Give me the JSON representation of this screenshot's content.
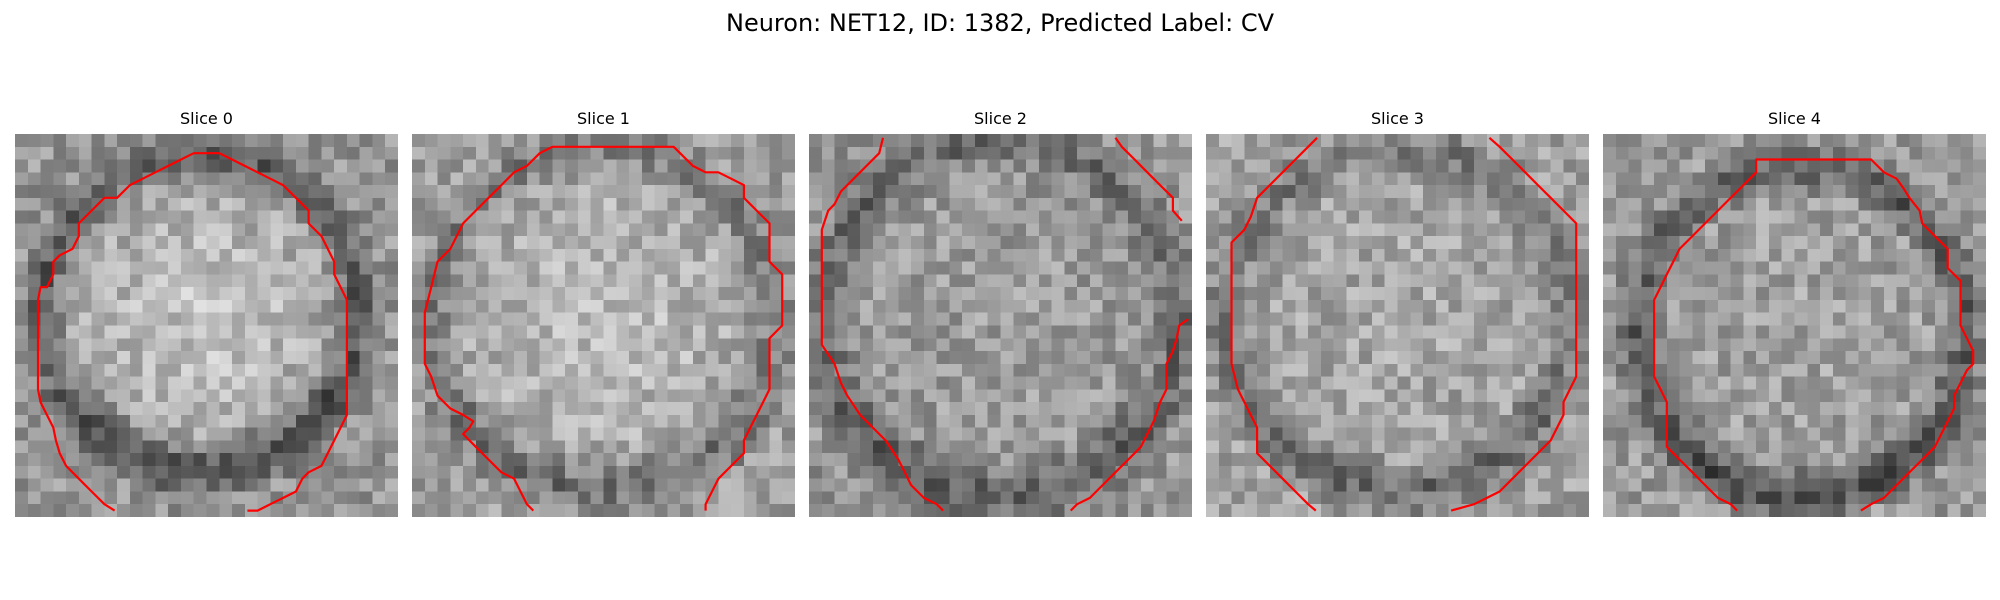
{
  "figure": {
    "title": "Neuron: NET12, ID: 1382, Predicted Label: CV",
    "contour_color": "#ff0000",
    "colormap": "grayscale"
  },
  "panels": [
    {
      "title": "Slice 0"
    },
    {
      "title": "Slice 1"
    },
    {
      "title": "Slice 2"
    },
    {
      "title": "Slice 3"
    },
    {
      "title": "Slice 4"
    }
  ]
}
